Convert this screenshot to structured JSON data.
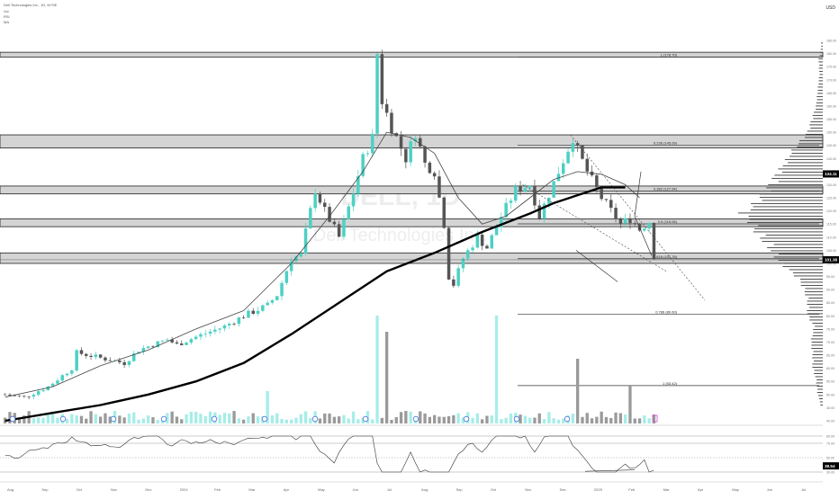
{
  "header": {
    "symbol_line": "Dell Technologies Inc., 1D, NYSE",
    "sub_lines": [
      "Vol",
      "RSI",
      "MA"
    ],
    "currency": "USD"
  },
  "watermark": {
    "ticker": "DELL, 1D",
    "company": "Dell Technologies Inc."
  },
  "colors": {
    "up": "#4dd0c4",
    "down": "#555555",
    "vol_up": "#a6ede8",
    "vol_down": "#9a9a9a",
    "ma200": "#000000",
    "ma50": "#444444",
    "zone": "#d4d4d4",
    "zone_border": "#222222",
    "current_badge": "#000000",
    "event_icon": "#3f6fd8",
    "future_icon": "#d04fd0"
  },
  "chart_data": {
    "type": "candlestick",
    "price_axis": {
      "ylim": [
        40,
        185
      ],
      "ticks": [
        185,
        180,
        175,
        170,
        165,
        160,
        155,
        150,
        145,
        140,
        135,
        130,
        125,
        120,
        115,
        110,
        105,
        100,
        95,
        90,
        85,
        80,
        75,
        70,
        65,
        60,
        55,
        50,
        45,
        40
      ]
    },
    "time_axis": {
      "labels": [
        "Aug",
        "Sep",
        "Oct",
        "Nov",
        "Dec",
        "2024",
        "Feb",
        "Mar",
        "Apr",
        "May",
        "Jun",
        "Jul",
        "Aug",
        "Sep",
        "Oct",
        "Nov",
        "Dec",
        "2025",
        "Feb",
        "Mar",
        "Apr",
        "May",
        "Jun",
        "Jul"
      ]
    },
    "current_price": 101.38,
    "ma_price_label": 134.11,
    "anchors": [
      [
        0,
        50
      ],
      [
        4,
        49
      ],
      [
        9,
        53
      ],
      [
        14,
        60
      ],
      [
        15,
        66
      ],
      [
        20,
        64
      ],
      [
        25,
        62
      ],
      [
        28,
        67
      ],
      [
        34,
        71
      ],
      [
        36,
        69
      ],
      [
        40,
        72
      ],
      [
        46,
        76
      ],
      [
        50,
        80
      ],
      [
        55,
        84
      ],
      [
        57,
        88
      ],
      [
        60,
        102
      ],
      [
        62,
        103
      ],
      [
        63,
        112
      ],
      [
        65,
        128
      ],
      [
        67,
        120
      ],
      [
        70,
        110
      ],
      [
        73,
        127
      ],
      [
        75,
        140
      ],
      [
        77,
        148
      ],
      [
        78,
        180
      ],
      [
        79,
        162
      ],
      [
        81,
        152
      ],
      [
        84,
        140
      ],
      [
        86,
        150
      ],
      [
        88,
        138
      ],
      [
        90,
        135
      ],
      [
        92,
        115
      ],
      [
        93,
        95
      ],
      [
        94,
        92
      ],
      [
        96,
        102
      ],
      [
        99,
        110
      ],
      [
        101,
        106
      ],
      [
        104,
        118
      ],
      [
        107,
        128
      ],
      [
        110,
        130
      ],
      [
        112,
        118
      ],
      [
        116,
        135
      ],
      [
        119,
        148
      ],
      [
        120,
        143
      ],
      [
        122,
        135
      ],
      [
        125,
        125
      ],
      [
        127,
        120
      ],
      [
        129,
        115
      ],
      [
        131,
        117
      ],
      [
        133,
        113
      ],
      [
        135,
        116
      ],
      [
        136,
        103
      ]
    ],
    "ma200": [
      [
        0,
        40
      ],
      [
        10,
        43
      ],
      [
        20,
        46
      ],
      [
        30,
        50
      ],
      [
        40,
        55
      ],
      [
        50,
        62
      ],
      [
        60,
        73
      ],
      [
        70,
        85
      ],
      [
        80,
        97
      ],
      [
        90,
        104
      ],
      [
        100,
        112
      ],
      [
        110,
        119
      ],
      [
        115,
        123
      ],
      [
        120,
        126
      ],
      [
        125,
        129
      ],
      [
        130,
        129
      ]
    ],
    "ma50": [
      [
        0,
        49
      ],
      [
        10,
        53
      ],
      [
        20,
        61
      ],
      [
        30,
        67
      ],
      [
        40,
        75
      ],
      [
        50,
        82
      ],
      [
        60,
        100
      ],
      [
        68,
        118
      ],
      [
        75,
        135
      ],
      [
        80,
        150
      ],
      [
        85,
        148
      ],
      [
        90,
        142
      ],
      [
        95,
        125
      ],
      [
        100,
        115
      ],
      [
        105,
        118
      ],
      [
        110,
        125
      ],
      [
        115,
        132
      ],
      [
        120,
        135
      ],
      [
        125,
        134
      ],
      [
        130,
        130
      ],
      [
        133,
        125
      ]
    ],
    "fib_levels": [
      {
        "label": "1 (178.70)",
        "price": 178.7
      },
      {
        "label": "0.236 (145.09)",
        "price": 145.09
      },
      {
        "label": "0.382 (127.54)",
        "price": 127.54
      },
      {
        "label": "0.5 (115.06)",
        "price": 115.06
      },
      {
        "label": "0.618 (101.78)",
        "price": 101.78
      },
      {
        "label": "0.786 (80.60)",
        "price": 80.6
      },
      {
        "label": "1 (53.42)",
        "price": 53.42
      }
    ],
    "zones": [
      [
        178.7,
        180.5
      ],
      [
        144,
        149
      ],
      [
        126.5,
        129.5
      ],
      [
        114,
        117
      ],
      [
        100,
        104
      ]
    ],
    "volume_spikes": [
      [
        55,
        0.3
      ],
      [
        78,
        1.0
      ],
      [
        80,
        0.85
      ],
      [
        103,
        1.0
      ],
      [
        120,
        0.6
      ],
      [
        131,
        0.35
      ]
    ],
    "rsi": {
      "levels": [
        80,
        70,
        50,
        30
      ],
      "current": 38.54,
      "tick_labels": [
        "80.00",
        "70.00",
        "50.00",
        "30.00"
      ]
    },
    "volume_profile": [
      [
        47,
        0.03
      ],
      [
        50,
        0.06
      ],
      [
        56,
        0.08
      ],
      [
        60,
        0.12
      ],
      [
        66,
        0.12
      ],
      [
        70,
        0.14
      ],
      [
        76,
        0.1
      ],
      [
        80,
        0.18
      ],
      [
        86,
        0.18
      ],
      [
        90,
        0.22
      ],
      [
        94,
        0.28
      ],
      [
        98,
        0.42
      ],
      [
        101,
        0.52
      ],
      [
        104,
        0.58
      ],
      [
        108,
        0.68
      ],
      [
        112,
        0.78
      ],
      [
        116,
        0.85
      ],
      [
        119,
        0.95
      ],
      [
        122,
        0.82
      ],
      [
        126,
        0.72
      ],
      [
        130,
        0.62
      ],
      [
        134,
        0.55
      ],
      [
        138,
        0.45
      ],
      [
        142,
        0.38
      ],
      [
        146,
        0.28
      ],
      [
        150,
        0.18
      ],
      [
        156,
        0.12
      ],
      [
        160,
        0.08
      ],
      [
        166,
        0.06
      ],
      [
        172,
        0.04
      ],
      [
        178,
        0.05
      ],
      [
        182,
        0.02
      ]
    ]
  }
}
